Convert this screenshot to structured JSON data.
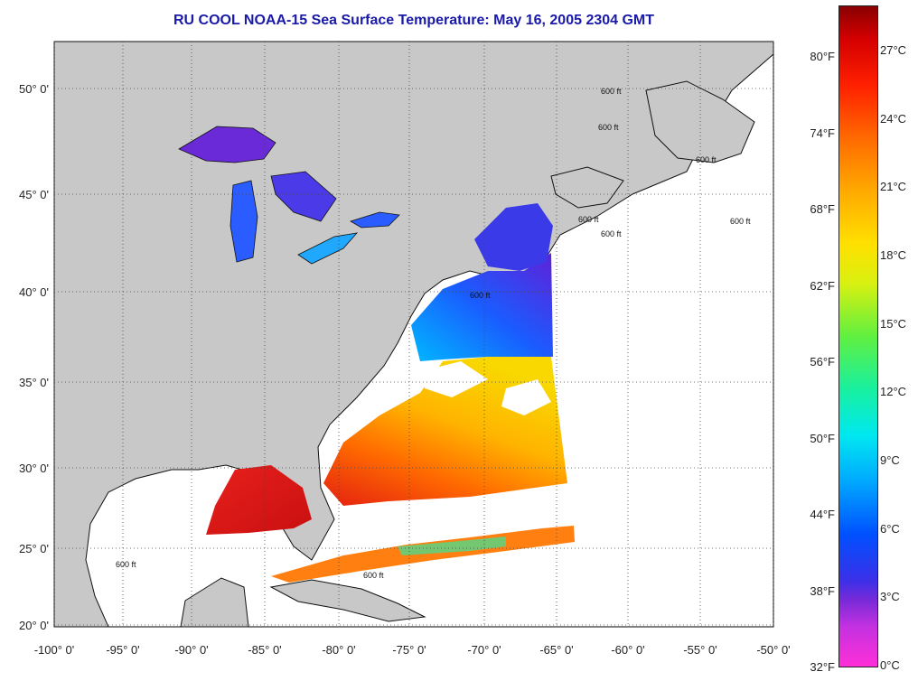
{
  "title": "RU COOL  NOAA-15  Sea Surface Temperature:  May 16, 2005 2304 GMT",
  "lat_labels": [
    "50° 0'",
    "45° 0'",
    "40° 0'",
    "35° 0'",
    "30° 0'",
    "25° 0'",
    "20° 0'"
  ],
  "lon_labels": [
    "-100° 0'",
    "-95° 0'",
    "-90° 0'",
    "-85° 0'",
    "-80° 0'",
    "-75° 0'",
    "-70° 0'",
    "-65° 0'",
    "-60° 0'",
    "-55° 0'",
    "-50° 0'"
  ],
  "colorbar": {
    "fahrenheit": [
      "80°F",
      "74°F",
      "68°F",
      "62°F",
      "56°F",
      "50°F",
      "44°F",
      "38°F",
      "32°F"
    ],
    "celsius": [
      "27°C",
      "24°C",
      "21°C",
      "18°C",
      "15°C",
      "12°C",
      "9°C",
      "6°C",
      "3°C",
      "0°C"
    ]
  },
  "contour_label": "600 ft",
  "colors": {
    "land": "#c8c8c8",
    "ocean": "#ffffff",
    "title": "#1a1aa8"
  }
}
